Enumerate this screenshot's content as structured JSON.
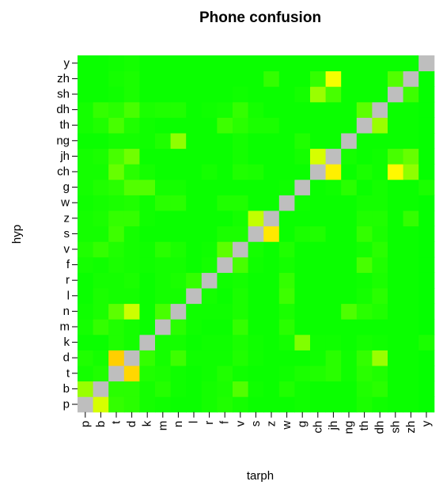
{
  "chart_data": {
    "type": "heatmap",
    "title": "Phone confusion",
    "xlabel": "tarph",
    "ylabel": "hyp",
    "x_categories": [
      "p",
      "b",
      "t",
      "d",
      "k",
      "m",
      "n",
      "l",
      "r",
      "f",
      "v",
      "s",
      "z",
      "w",
      "g",
      "ch",
      "jh",
      "ng",
      "th",
      "dh",
      "sh",
      "zh",
      "y"
    ],
    "y_categories": [
      "p",
      "b",
      "t",
      "d",
      "k",
      "m",
      "n",
      "l",
      "r",
      "f",
      "v",
      "s",
      "z",
      "w",
      "g",
      "ch",
      "jh",
      "ng",
      "th",
      "dh",
      "sh",
      "zh",
      "y"
    ],
    "diagonal_color": "#bebebe",
    "color_scale": [
      "#00ff00",
      "#ffff00",
      "#ffc000"
    ],
    "value_range": [
      0,
      1
    ],
    "values": [
      [
        -1,
        0.42,
        0.1,
        0.08,
        0.04,
        0.03,
        0.02,
        0.02,
        0.04,
        0.06,
        0.04,
        0.02,
        0.02,
        0.02,
        0.03,
        0.02,
        0.02,
        0.02,
        0.05,
        0.03,
        0.02,
        0.02,
        0.01
      ],
      [
        0.3,
        -1,
        0.08,
        0.08,
        0.04,
        0.07,
        0.03,
        0.02,
        0.04,
        0.05,
        0.16,
        0.03,
        0.02,
        0.06,
        0.03,
        0.02,
        0.02,
        0.02,
        0.06,
        0.08,
        0.02,
        0.02,
        0.01
      ],
      [
        0.04,
        0.06,
        -1,
        0.82,
        0.06,
        0.05,
        0.03,
        0.02,
        0.03,
        0.06,
        0.03,
        0.02,
        0.02,
        0.03,
        0.05,
        0.06,
        0.08,
        0.03,
        0.08,
        0.06,
        0.02,
        0.02,
        0.01
      ],
      [
        0.06,
        0.04,
        0.88,
        -1,
        0.1,
        0.04,
        0.12,
        0.03,
        0.03,
        0.03,
        0.06,
        0.03,
        0.02,
        0.02,
        0.02,
        0.03,
        0.08,
        0.03,
        0.1,
        0.3,
        0.02,
        0.02,
        0.01
      ],
      [
        0.02,
        0.02,
        0.06,
        0.04,
        -1,
        0.04,
        0.04,
        0.02,
        0.03,
        0.03,
        0.05,
        0.03,
        0.02,
        0.04,
        0.25,
        0.03,
        0.03,
        0.02,
        0.04,
        0.03,
        0.02,
        0.02,
        0.05
      ],
      [
        0.04,
        0.1,
        0.06,
        0.04,
        0.02,
        -1,
        0.08,
        0.03,
        0.02,
        0.02,
        0.1,
        0.02,
        0.02,
        0.08,
        0.02,
        0.02,
        0.02,
        0.02,
        0.02,
        0.02,
        0.02,
        0.02,
        0.01
      ],
      [
        0.03,
        0.05,
        0.18,
        0.4,
        0.02,
        0.14,
        -1,
        0.03,
        0.03,
        0.03,
        0.05,
        0.02,
        0.02,
        0.05,
        0.02,
        0.02,
        0.02,
        0.15,
        0.08,
        0.06,
        0.02,
        0.02,
        0.01
      ],
      [
        0.02,
        0.05,
        0.04,
        0.04,
        0.02,
        0.04,
        0.04,
        -1,
        0.04,
        0.02,
        0.05,
        0.02,
        0.02,
        0.12,
        0.02,
        0.02,
        0.02,
        0.02,
        0.04,
        0.08,
        0.02,
        0.02,
        0.01
      ],
      [
        0.02,
        0.04,
        0.04,
        0.05,
        0.02,
        0.04,
        0.05,
        0.1,
        -1,
        0.03,
        0.04,
        0.02,
        0.02,
        0.1,
        0.02,
        0.02,
        0.02,
        0.02,
        0.03,
        0.05,
        0.02,
        0.02,
        0.01
      ],
      [
        0.04,
        0.03,
        0.05,
        0.04,
        0.03,
        0.04,
        0.04,
        0.02,
        0.04,
        -1,
        0.14,
        0.03,
        0.02,
        0.04,
        0.02,
        0.02,
        0.02,
        0.02,
        0.14,
        0.06,
        0.02,
        0.02,
        0.01
      ],
      [
        0.06,
        0.1,
        0.06,
        0.04,
        0.03,
        0.08,
        0.05,
        0.02,
        0.03,
        0.18,
        -1,
        0.04,
        0.02,
        0.06,
        0.02,
        0.02,
        0.02,
        0.02,
        0.04,
        0.08,
        0.02,
        0.02,
        0.01
      ],
      [
        0.04,
        0.04,
        0.12,
        0.04,
        0.02,
        0.02,
        0.02,
        0.02,
        0.02,
        0.05,
        0.05,
        -1,
        0.68,
        0.02,
        0.05,
        0.06,
        0.02,
        0.02,
        0.1,
        0.05,
        0.02,
        0.02,
        0.01
      ],
      [
        0.04,
        0.05,
        0.1,
        0.1,
        0.03,
        0.02,
        0.02,
        0.02,
        0.02,
        0.02,
        0.04,
        0.38,
        -1,
        0.02,
        0.02,
        0.02,
        0.02,
        0.02,
        0.06,
        0.06,
        0.02,
        0.1,
        0.01
      ],
      [
        0.03,
        0.04,
        0.05,
        0.06,
        0.03,
        0.08,
        0.08,
        0.02,
        0.02,
        0.06,
        0.06,
        0.02,
        0.02,
        -1,
        0.03,
        0.02,
        0.02,
        0.02,
        0.04,
        0.04,
        0.02,
        0.02,
        0.01
      ],
      [
        0.04,
        0.06,
        0.08,
        0.16,
        0.16,
        0.04,
        0.04,
        0.02,
        0.02,
        0.02,
        0.02,
        0.02,
        0.02,
        0.03,
        -1,
        0.02,
        0.03,
        0.08,
        0.02,
        0.04,
        0.02,
        0.02,
        0.05
      ],
      [
        0.04,
        0.04,
        0.2,
        0.08,
        0.04,
        0.02,
        0.02,
        0.02,
        0.04,
        0.02,
        0.06,
        0.05,
        0.02,
        0.02,
        0.02,
        -1,
        0.62,
        0.02,
        0.05,
        0.03,
        0.55,
        0.28,
        0.01
      ],
      [
        0.04,
        0.05,
        0.14,
        0.22,
        0.02,
        0.02,
        0.02,
        0.02,
        0.02,
        0.02,
        0.04,
        0.02,
        0.02,
        0.02,
        0.04,
        0.42,
        -1,
        0.04,
        0.02,
        0.03,
        0.14,
        0.2,
        0.01
      ],
      [
        0.02,
        0.02,
        0.04,
        0.04,
        0.03,
        0.06,
        0.28,
        0.02,
        0.02,
        0.02,
        0.04,
        0.02,
        0.02,
        0.02,
        0.06,
        0.02,
        0.02,
        -1,
        0.02,
        0.02,
        0.02,
        0.02,
        0.01
      ],
      [
        0.04,
        0.06,
        0.14,
        0.06,
        0.03,
        0.02,
        0.02,
        0.02,
        0.02,
        0.12,
        0.08,
        0.05,
        0.05,
        0.02,
        0.02,
        0.02,
        0.02,
        0.02,
        -1,
        0.3,
        0.02,
        0.02,
        0.01
      ],
      [
        0.04,
        0.1,
        0.08,
        0.14,
        0.05,
        0.06,
        0.06,
        0.02,
        0.03,
        0.04,
        0.1,
        0.04,
        0.02,
        0.02,
        0.02,
        0.02,
        0.02,
        0.02,
        0.18,
        -1,
        0.02,
        0.02,
        0.01
      ],
      [
        0.02,
        0.02,
        0.03,
        0.05,
        0.02,
        0.02,
        0.02,
        0.02,
        0.02,
        0.02,
        0.03,
        0.02,
        0.02,
        0.02,
        0.04,
        0.3,
        0.14,
        0.02,
        0.02,
        0.02,
        -1,
        0.12,
        0.01
      ],
      [
        0.02,
        0.02,
        0.04,
        0.05,
        0.02,
        0.02,
        0.02,
        0.02,
        0.02,
        0.02,
        0.02,
        0.02,
        0.1,
        0.02,
        0.02,
        0.1,
        0.48,
        0.02,
        0.02,
        0.02,
        0.16,
        -1,
        0.01
      ],
      [
        0.02,
        0.02,
        0.03,
        0.04,
        0.02,
        0.02,
        0.02,
        0.02,
        0.02,
        0.02,
        0.02,
        0.02,
        0.02,
        0.02,
        0.02,
        0.02,
        0.02,
        0.02,
        0.02,
        0.02,
        0.02,
        0.02,
        -1
      ]
    ]
  }
}
